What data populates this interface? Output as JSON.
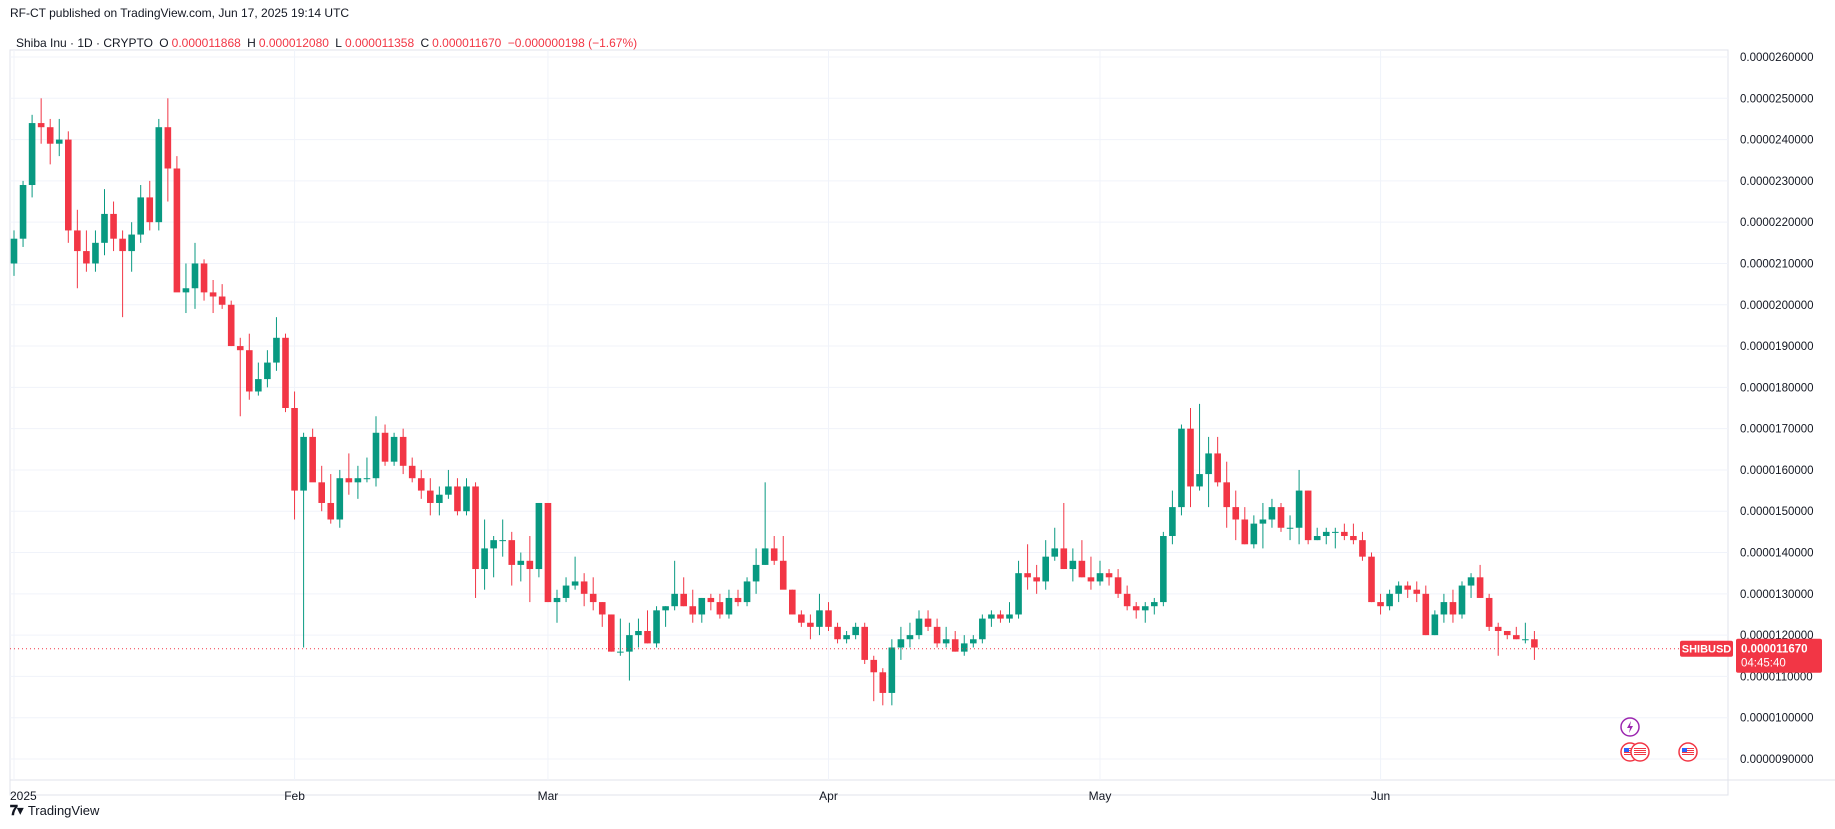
{
  "header": {
    "published": "RF-CT published on TradingView.com, Jun 17, 2025 19:14 UTC"
  },
  "legend": {
    "symbol": "Shiba Inu · 1D · CRYPTO",
    "open_label": "O",
    "open": "0.000011868",
    "high_label": "H",
    "high": "0.000012080",
    "low_label": "L",
    "low": "0.000011358",
    "close_label": "C",
    "close": "0.000011670",
    "change": "−0.000000198 (−1.67%)"
  },
  "footer": {
    "brand": "TradingView",
    "logo_icon": "tradingview-logo-icon"
  },
  "price_tag": {
    "ticker": "SHIBUSD",
    "price": "0.000011670",
    "countdown": "04:45:40"
  },
  "events": [
    {
      "icon": "lightning-icon",
      "color": "#9c27b0"
    },
    {
      "icon": "us-flag-icon",
      "color": "#f23645"
    },
    {
      "icon": "us-flag-icon",
      "color": "#f23645"
    }
  ],
  "colors": {
    "up": "#089981",
    "down": "#f23645",
    "grid": "#f0f3fa",
    "axis": "#e0e3eb"
  },
  "chart_data": {
    "type": "candlestick",
    "symbol": "SHIBUSD",
    "interval": "1D",
    "y_unit_scale": 1e-06,
    "ylim": [
      8.9e-06,
      2.64e-05
    ],
    "y_ticks": [
      "0.0000090000",
      "0.0000100000",
      "0.0000110000",
      "0.0000120000",
      "0.0000130000",
      "0.0000140000",
      "0.0000150000",
      "0.0000160000",
      "0.0000170000",
      "0.0000180000",
      "0.0000190000",
      "0.0000200000",
      "0.0000210000",
      "0.0000220000",
      "0.0000230000",
      "0.0000240000",
      "0.0000250000",
      "0.0000260000"
    ],
    "x_labels": [
      {
        "label": "2025",
        "index": 0
      },
      {
        "label": "Feb",
        "index": 31
      },
      {
        "label": "Mar",
        "index": 59
      },
      {
        "label": "Apr",
        "index": 90
      },
      {
        "label": "May",
        "index": 120
      },
      {
        "label": "Jun",
        "index": 151
      }
    ],
    "last_price": 11.67,
    "candles_ohlc_micro": [
      [
        21.0,
        21.8,
        20.7,
        21.6
      ],
      [
        21.6,
        23.0,
        21.4,
        22.9
      ],
      [
        22.9,
        24.6,
        22.6,
        24.4
      ],
      [
        24.4,
        25.0,
        23.9,
        24.3
      ],
      [
        24.3,
        24.5,
        23.4,
        23.9
      ],
      [
        23.9,
        24.5,
        23.6,
        24.0
      ],
      [
        24.0,
        24.2,
        21.5,
        21.8
      ],
      [
        21.8,
        22.3,
        20.4,
        21.3
      ],
      [
        21.3,
        21.8,
        20.8,
        21.0
      ],
      [
        21.0,
        21.8,
        20.8,
        21.5
      ],
      [
        21.5,
        22.8,
        21.2,
        22.2
      ],
      [
        22.2,
        22.5,
        21.3,
        21.6
      ],
      [
        21.6,
        21.8,
        19.7,
        21.3
      ],
      [
        21.3,
        22.0,
        20.8,
        21.7
      ],
      [
        21.7,
        22.9,
        21.5,
        22.6
      ],
      [
        22.6,
        23.0,
        21.8,
        22.0
      ],
      [
        22.0,
        24.5,
        21.8,
        24.3
      ],
      [
        24.3,
        25.0,
        22.5,
        23.3
      ],
      [
        23.3,
        23.6,
        20.4,
        20.3
      ],
      [
        20.3,
        21.0,
        19.8,
        20.4
      ],
      [
        20.4,
        21.5,
        19.9,
        21.0
      ],
      [
        21.0,
        21.1,
        20.1,
        20.3
      ],
      [
        20.3,
        20.6,
        19.8,
        20.2
      ],
      [
        20.2,
        20.5,
        19.9,
        20.0
      ],
      [
        20.0,
        20.1,
        19.0,
        19.0
      ],
      [
        19.0,
        19.2,
        17.3,
        18.9
      ],
      [
        18.9,
        19.3,
        17.7,
        17.9
      ],
      [
        17.9,
        18.6,
        17.8,
        18.2
      ],
      [
        18.2,
        18.9,
        18.0,
        18.6
      ],
      [
        18.6,
        19.7,
        18.4,
        19.2
      ],
      [
        19.2,
        19.3,
        17.4,
        17.5
      ],
      [
        17.5,
        17.9,
        14.8,
        15.5
      ],
      [
        15.5,
        16.9,
        11.7,
        16.8
      ],
      [
        16.8,
        17.0,
        15.8,
        15.7
      ],
      [
        15.7,
        16.1,
        15.0,
        15.2
      ],
      [
        15.2,
        15.9,
        14.7,
        14.8
      ],
      [
        14.8,
        16.0,
        14.6,
        15.8
      ],
      [
        15.8,
        16.4,
        15.4,
        15.7
      ],
      [
        15.7,
        16.1,
        15.3,
        15.8
      ],
      [
        15.8,
        16.3,
        15.7,
        15.8
      ],
      [
        15.8,
        17.3,
        15.6,
        16.9
      ],
      [
        16.9,
        17.1,
        16.1,
        16.2
      ],
      [
        16.2,
        16.9,
        16.1,
        16.8
      ],
      [
        16.8,
        17.0,
        15.9,
        16.1
      ],
      [
        16.1,
        16.3,
        15.7,
        15.8
      ],
      [
        15.8,
        16.0,
        15.3,
        15.5
      ],
      [
        15.5,
        15.8,
        14.9,
        15.2
      ],
      [
        15.2,
        15.6,
        14.9,
        15.4
      ],
      [
        15.4,
        16.0,
        15.3,
        15.6
      ],
      [
        15.6,
        15.8,
        14.9,
        15.0
      ],
      [
        15.0,
        15.8,
        14.9,
        15.6
      ],
      [
        15.6,
        15.7,
        12.9,
        13.6
      ],
      [
        13.6,
        14.8,
        13.1,
        14.1
      ],
      [
        14.1,
        14.4,
        13.4,
        14.3
      ],
      [
        14.3,
        14.8,
        13.9,
        14.3
      ],
      [
        14.3,
        14.5,
        13.2,
        13.7
      ],
      [
        13.7,
        14.0,
        13.3,
        13.8
      ],
      [
        13.8,
        14.4,
        12.8,
        13.6
      ],
      [
        13.6,
        15.2,
        13.4,
        15.2
      ],
      [
        15.2,
        15.2,
        12.8,
        12.8
      ],
      [
        12.8,
        13.1,
        12.3,
        12.9
      ],
      [
        12.9,
        13.4,
        12.8,
        13.2
      ],
      [
        13.2,
        13.9,
        13.1,
        13.3
      ],
      [
        13.3,
        13.5,
        12.7,
        13.0
      ],
      [
        13.0,
        13.4,
        12.6,
        12.8
      ],
      [
        12.8,
        12.8,
        12.2,
        12.5
      ],
      [
        12.5,
        12.5,
        11.6,
        11.6
      ],
      [
        11.6,
        12.4,
        11.5,
        11.6
      ],
      [
        11.6,
        12.3,
        10.9,
        12.0
      ],
      [
        12.0,
        12.4,
        11.7,
        12.1
      ],
      [
        12.1,
        12.6,
        11.8,
        11.8
      ],
      [
        11.8,
        12.7,
        11.7,
        12.6
      ],
      [
        12.6,
        12.7,
        12.2,
        12.7
      ],
      [
        12.7,
        13.8,
        12.6,
        13.0
      ],
      [
        13.0,
        13.4,
        12.7,
        12.7
      ],
      [
        12.7,
        13.1,
        12.3,
        12.5
      ],
      [
        12.5,
        12.9,
        12.3,
        12.9
      ],
      [
        12.9,
        13.0,
        12.6,
        12.8
      ],
      [
        12.8,
        13.0,
        12.4,
        12.5
      ],
      [
        12.5,
        13.1,
        12.4,
        12.9
      ],
      [
        12.9,
        13.1,
        12.7,
        12.8
      ],
      [
        12.8,
        13.4,
        12.7,
        13.3
      ],
      [
        13.3,
        14.1,
        13.0,
        13.7
      ],
      [
        13.7,
        15.7,
        13.7,
        14.1
      ],
      [
        14.1,
        14.4,
        13.7,
        13.8
      ],
      [
        13.8,
        14.4,
        13.2,
        13.1
      ],
      [
        13.1,
        13.1,
        12.5,
        12.5
      ],
      [
        12.5,
        12.6,
        12.2,
        12.3
      ],
      [
        12.3,
        12.5,
        11.9,
        12.2
      ],
      [
        12.2,
        13.0,
        12.0,
        12.6
      ],
      [
        12.6,
        12.8,
        12.1,
        12.2
      ],
      [
        12.2,
        12.3,
        11.8,
        11.9
      ],
      [
        11.9,
        12.1,
        11.8,
        12.0
      ],
      [
        12.0,
        12.3,
        11.9,
        12.2
      ],
      [
        12.2,
        12.3,
        11.3,
        11.4
      ],
      [
        11.4,
        11.5,
        10.4,
        11.1
      ],
      [
        11.1,
        11.2,
        10.3,
        10.6
      ],
      [
        10.6,
        11.9,
        10.3,
        11.7
      ],
      [
        11.7,
        12.2,
        11.4,
        11.9
      ],
      [
        11.9,
        12.3,
        11.7,
        12.0
      ],
      [
        12.0,
        12.6,
        11.9,
        12.4
      ],
      [
        12.4,
        12.6,
        12.1,
        12.2
      ],
      [
        12.2,
        12.4,
        11.7,
        11.8
      ],
      [
        11.8,
        12.2,
        11.7,
        11.9
      ],
      [
        11.9,
        12.1,
        11.6,
        11.6
      ],
      [
        11.6,
        12.0,
        11.5,
        11.8
      ],
      [
        11.8,
        12.0,
        11.7,
        11.9
      ],
      [
        11.9,
        12.5,
        11.8,
        12.4
      ],
      [
        12.4,
        12.6,
        12.2,
        12.5
      ],
      [
        12.5,
        12.6,
        12.3,
        12.4
      ],
      [
        12.4,
        12.8,
        12.3,
        12.5
      ],
      [
        12.5,
        13.8,
        12.4,
        13.5
      ],
      [
        13.5,
        14.2,
        13.1,
        13.4
      ],
      [
        13.4,
        13.7,
        13.0,
        13.3
      ],
      [
        13.3,
        14.3,
        13.1,
        13.9
      ],
      [
        13.9,
        14.6,
        13.8,
        14.1
      ],
      [
        14.1,
        15.2,
        13.6,
        13.6
      ],
      [
        13.6,
        14.1,
        13.3,
        13.8
      ],
      [
        13.8,
        14.3,
        13.4,
        13.4
      ],
      [
        13.4,
        13.9,
        13.1,
        13.3
      ],
      [
        13.3,
        13.8,
        13.2,
        13.5
      ],
      [
        13.5,
        13.6,
        13.2,
        13.4
      ],
      [
        13.4,
        13.6,
        12.9,
        13.0
      ],
      [
        13.0,
        13.2,
        12.6,
        12.7
      ],
      [
        12.7,
        12.8,
        12.4,
        12.6
      ],
      [
        12.6,
        12.8,
        12.3,
        12.7
      ],
      [
        12.7,
        12.9,
        12.5,
        12.8
      ],
      [
        12.8,
        14.5,
        12.7,
        14.4
      ],
      [
        14.4,
        15.5,
        14.2,
        15.1
      ],
      [
        15.1,
        17.1,
        14.9,
        17.0
      ],
      [
        17.0,
        17.5,
        15.1,
        15.6
      ],
      [
        15.6,
        17.6,
        15.5,
        15.9
      ],
      [
        15.9,
        16.8,
        15.1,
        16.4
      ],
      [
        16.4,
        16.8,
        15.6,
        15.7
      ],
      [
        15.7,
        16.2,
        14.6,
        15.1
      ],
      [
        15.1,
        15.5,
        14.3,
        14.8
      ],
      [
        14.8,
        15.1,
        14.2,
        14.2
      ],
      [
        14.2,
        14.9,
        14.1,
        14.7
      ],
      [
        14.7,
        15.2,
        14.1,
        14.8
      ],
      [
        14.8,
        15.3,
        14.6,
        15.1
      ],
      [
        15.1,
        15.2,
        14.5,
        14.6
      ],
      [
        14.6,
        14.9,
        14.3,
        14.6
      ],
      [
        14.6,
        16.0,
        14.2,
        15.5
      ],
      [
        15.5,
        15.5,
        14.2,
        14.3
      ],
      [
        14.3,
        14.6,
        14.3,
        14.4
      ],
      [
        14.4,
        14.6,
        14.2,
        14.5
      ],
      [
        14.5,
        14.6,
        14.1,
        14.5
      ],
      [
        14.5,
        14.7,
        14.3,
        14.4
      ],
      [
        14.4,
        14.7,
        14.2,
        14.3
      ],
      [
        14.3,
        14.5,
        13.8,
        13.9
      ],
      [
        13.9,
        14.0,
        12.8,
        12.8
      ],
      [
        12.8,
        13.0,
        12.5,
        12.7
      ],
      [
        12.7,
        13.1,
        12.6,
        13.0
      ],
      [
        13.0,
        13.3,
        12.8,
        13.2
      ],
      [
        13.2,
        13.3,
        12.9,
        13.1
      ],
      [
        13.1,
        13.3,
        12.8,
        13.0
      ],
      [
        13.0,
        13.2,
        12.0,
        12.0
      ],
      [
        12.0,
        12.6,
        12.0,
        12.5
      ],
      [
        12.5,
        13.0,
        12.3,
        12.8
      ],
      [
        12.8,
        13.1,
        12.3,
        12.5
      ],
      [
        12.5,
        13.3,
        12.4,
        13.2
      ],
      [
        13.2,
        13.5,
        12.9,
        13.4
      ],
      [
        13.4,
        13.7,
        12.9,
        12.9
      ],
      [
        12.9,
        13.0,
        12.1,
        12.2
      ],
      [
        12.2,
        12.3,
        11.5,
        12.1
      ],
      [
        12.1,
        12.1,
        11.9,
        12.0
      ],
      [
        12.0,
        12.2,
        11.9,
        11.9
      ],
      [
        11.9,
        12.3,
        11.8,
        11.9
      ],
      [
        11.9,
        12.1,
        11.4,
        11.7
      ]
    ]
  }
}
